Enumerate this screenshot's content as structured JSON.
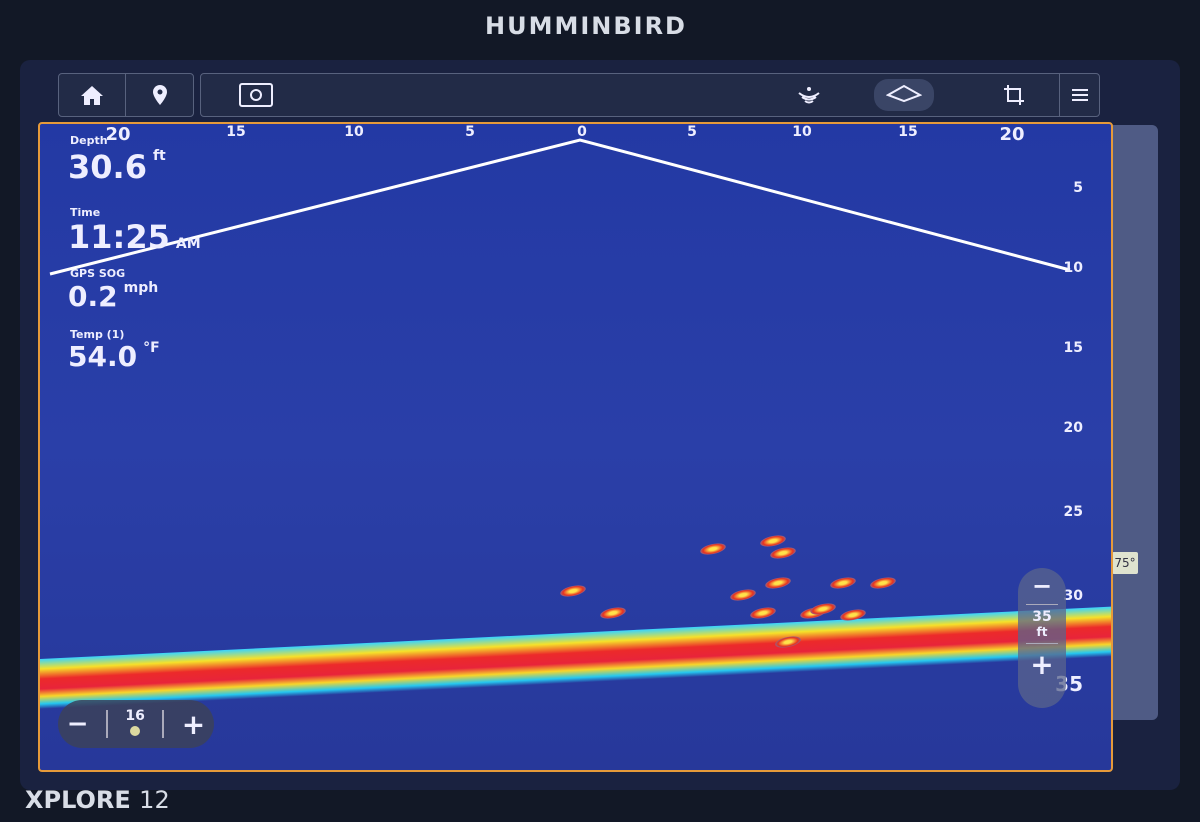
{
  "brand": "HUMMINBIRD",
  "model": {
    "name": "XPLORE",
    "size": "12"
  },
  "toolbar": {
    "icons": [
      "home-icon",
      "waypoint-pin-icon",
      "settings-screen-icon",
      "sonar-icon",
      "view-icon",
      "crop-icon",
      "menu-icon"
    ]
  },
  "range_scale": [
    "20",
    "15",
    "10",
    "5",
    "0",
    "5",
    "10",
    "15",
    "20"
  ],
  "depth_scale": [
    "5",
    "10",
    "15",
    "20",
    "25",
    "30",
    "35"
  ],
  "readouts": {
    "depth": {
      "label": "Depth",
      "value": "30.6",
      "unit": "ft"
    },
    "time": {
      "label": "Time",
      "value": "11:25",
      "unit": "AM"
    },
    "sog": {
      "label": "GPS SOG",
      "value": "0.2",
      "unit": "mph"
    },
    "temp": {
      "label": "Temp (1)",
      "value": "54.0",
      "unit": "°F"
    }
  },
  "depth_zoom": {
    "value": "35",
    "unit": "ft",
    "minus": "−",
    "plus": "+"
  },
  "gain": {
    "value": "16",
    "minus": "−",
    "plus": "+"
  },
  "beam_angle": "75°",
  "colors": {
    "accent": "#e69a3a",
    "water": "#2a3fa8"
  }
}
